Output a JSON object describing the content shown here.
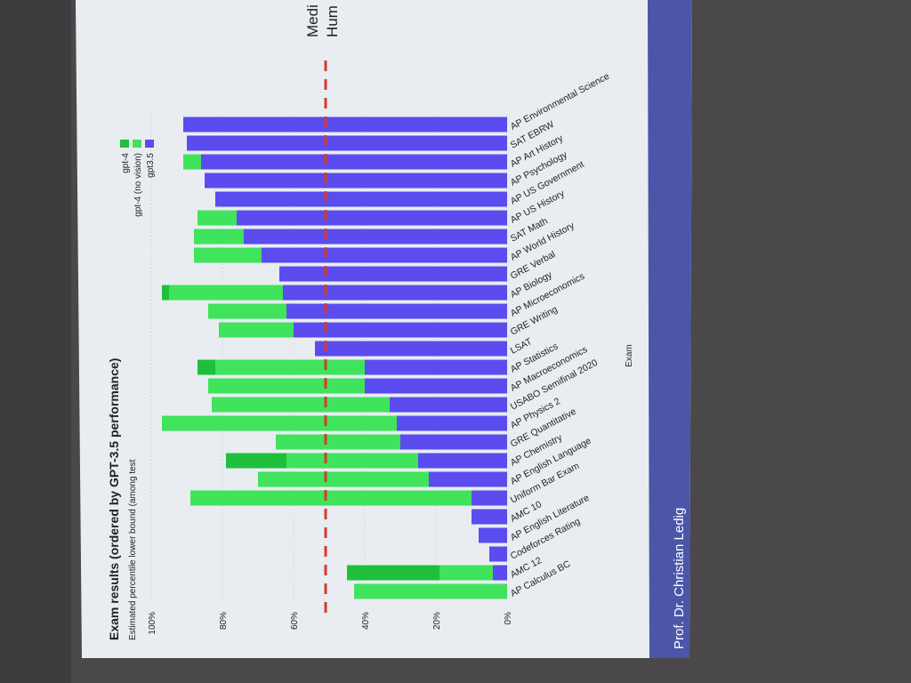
{
  "slide": {
    "footer": "Prof. Dr. Christian Ledig"
  },
  "chart_data": {
    "type": "bar",
    "orientation": "horizontal",
    "title": "Exam results (ordered by GPT-3.5 performance)",
    "subtitle": "Estimated percentile lower bound (among test",
    "x_label": "Exam",
    "categories": [
      "AP Environmental Science",
      "SAT EBRW",
      "AP Art History",
      "AP Psychology",
      "AP US Government",
      "AP US History",
      "SAT Math",
      "AP World History",
      "GRE Verbal",
      "AP Biology",
      "AP Microeconomics",
      "GRE Writing",
      "LSAT",
      "AP Statistics",
      "AP Macroeconomics",
      "USABO Semifinal 2020",
      "AP Physics 2",
      "GRE Quantitative",
      "AP Chemistry",
      "AP English Language",
      "Uniform Bar Exam",
      "AMC 10",
      "AP English Literature",
      "Codeforces Rating",
      "AMC 12",
      "AP Calculus BC"
    ],
    "series": [
      {
        "name": "gpt-4",
        "color": "#1fbf3c",
        "values": [
          91,
          90,
          91,
          85,
          82,
          87,
          88,
          88,
          64,
          97,
          84,
          81,
          54,
          87,
          84,
          83,
          97,
          65,
          79,
          70,
          89,
          10,
          8,
          5,
          45,
          43
        ]
      },
      {
        "name": "gpt-4 (no vision)",
        "color": "#3fe35c",
        "values": [
          91,
          90,
          91,
          85,
          82,
          87,
          88,
          88,
          64,
          95,
          84,
          81,
          54,
          82,
          84,
          83,
          97,
          65,
          62,
          70,
          89,
          10,
          8,
          5,
          19,
          43
        ]
      },
      {
        "name": "gpt3.5",
        "color": "#5a4cee",
        "values": [
          91,
          90,
          86,
          85,
          82,
          76,
          74,
          69,
          64,
          63,
          62,
          60,
          54,
          40,
          40,
          33,
          31,
          30,
          25,
          22,
          10,
          10,
          8,
          5,
          4,
          0
        ]
      }
    ],
    "ylim": [
      0,
      100
    ],
    "yticks": [
      {
        "value": 0,
        "label": "0%"
      },
      {
        "value": 20,
        "label": "20%"
      },
      {
        "value": 40,
        "label": "40%"
      },
      {
        "value": 60,
        "label": "60%"
      },
      {
        "value": 80,
        "label": "80%"
      },
      {
        "value": 100,
        "label": "100%"
      }
    ],
    "grid": true,
    "reference_line": {
      "value": 51,
      "color": "#d63a2e",
      "label_lines": [
        "Medi",
        "Hum"
      ]
    }
  }
}
